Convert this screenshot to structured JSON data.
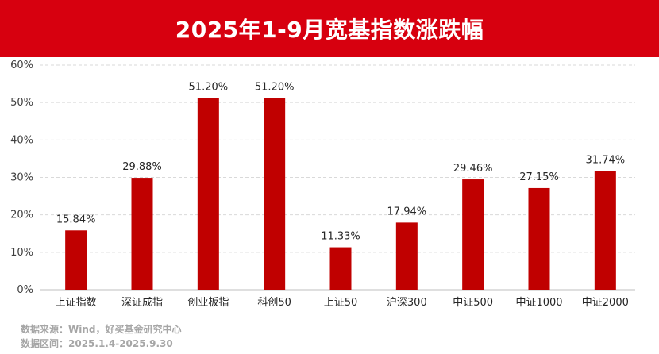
{
  "header": {
    "title": "2025年1-9月宽基指数涨跌幅"
  },
  "colors": {
    "banner": "#d7000f",
    "bar": "#c00000"
  },
  "chart_data": {
    "type": "bar",
    "title": "2025年1-9月宽基指数涨跌幅",
    "categories": [
      "上证指数",
      "深证成指",
      "创业板指",
      "科创50",
      "上证50",
      "沪深300",
      "中证500",
      "中证1000",
      "中证2000"
    ],
    "values": [
      15.84,
      29.88,
      51.2,
      51.2,
      11.33,
      17.94,
      29.46,
      27.15,
      31.74
    ],
    "data_labels": [
      "15.84%",
      "29.88%",
      "51.20%",
      "51.20%",
      "11.33%",
      "17.94%",
      "29.46%",
      "27.15%",
      "31.74%"
    ],
    "yticks": [
      0,
      10,
      20,
      30,
      40,
      50,
      60
    ],
    "ytick_labels": [
      "0%",
      "10%",
      "20%",
      "30%",
      "40%",
      "50%",
      "60%"
    ],
    "ylim": [
      0,
      60
    ],
    "xlabel": "",
    "ylabel": "",
    "grid": true,
    "legend": "none"
  },
  "footer": {
    "source": "数据来源：Wind，好买基金研究中心",
    "period": "数据区间：2025.1.4-2025.9.30"
  }
}
